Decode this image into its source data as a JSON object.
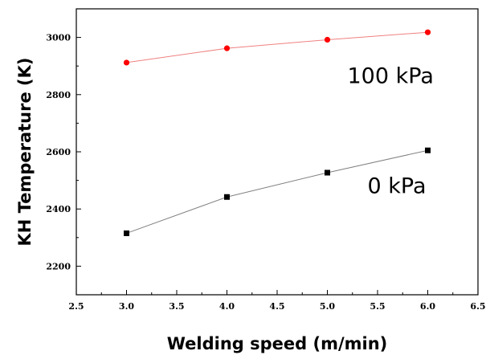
{
  "chart_data": {
    "type": "line",
    "xlabel": "Welding speed (m/min)",
    "ylabel": "KH Temperature  (K)",
    "xlim": [
      2.5,
      6.5
    ],
    "ylim": [
      2100,
      3100
    ],
    "x_ticks": [
      "2.5",
      "3.0",
      "3.5",
      "4.0",
      "4.5",
      "5.0",
      "5.5",
      "6.0",
      "6.5"
    ],
    "y_ticks": [
      "2200",
      "2400",
      "2600",
      "2800",
      "3000"
    ],
    "grid": false,
    "series": [
      {
        "name": "100 kPa",
        "marker": "circle",
        "color": "#ff0000",
        "line_color": "#f08080",
        "x": [
          3.0,
          4.0,
          5.0,
          6.0
        ],
        "y": [
          2912,
          2962,
          2992,
          3018
        ]
      },
      {
        "name": "0 kPa",
        "marker": "square",
        "color": "#000000",
        "line_color": "#808080",
        "x": [
          3.0,
          4.0,
          5.0,
          6.0
        ],
        "y": [
          2315,
          2442,
          2527,
          2605
        ]
      }
    ]
  }
}
